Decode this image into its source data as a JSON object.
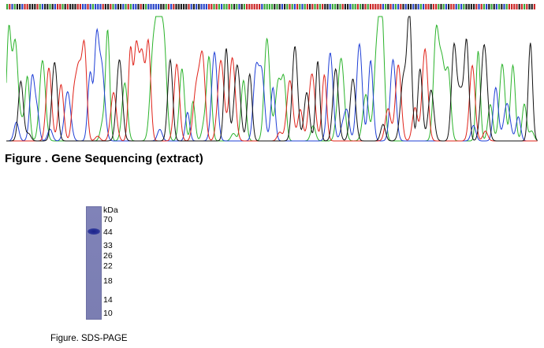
{
  "sequencing": {
    "caption": "Figure . Gene Sequencing (extract)",
    "trace_colors": {
      "A": "#2bb32b",
      "C": "#1f3fd6",
      "G": "#111111",
      "T": "#e0231a"
    },
    "header_colors": {
      "A": "#3aa83a",
      "C": "#2a47c9",
      "G": "#222222",
      "T": "#cc2a2a"
    }
  },
  "gel": {
    "caption": "Figure. SDS-PAGE",
    "unit_label": "kDa",
    "markers": [
      "70",
      "44",
      "33",
      "26",
      "22",
      "18",
      "14",
      "10"
    ],
    "lane_color": "#7f82b7",
    "band_color": "#1e278c"
  }
}
